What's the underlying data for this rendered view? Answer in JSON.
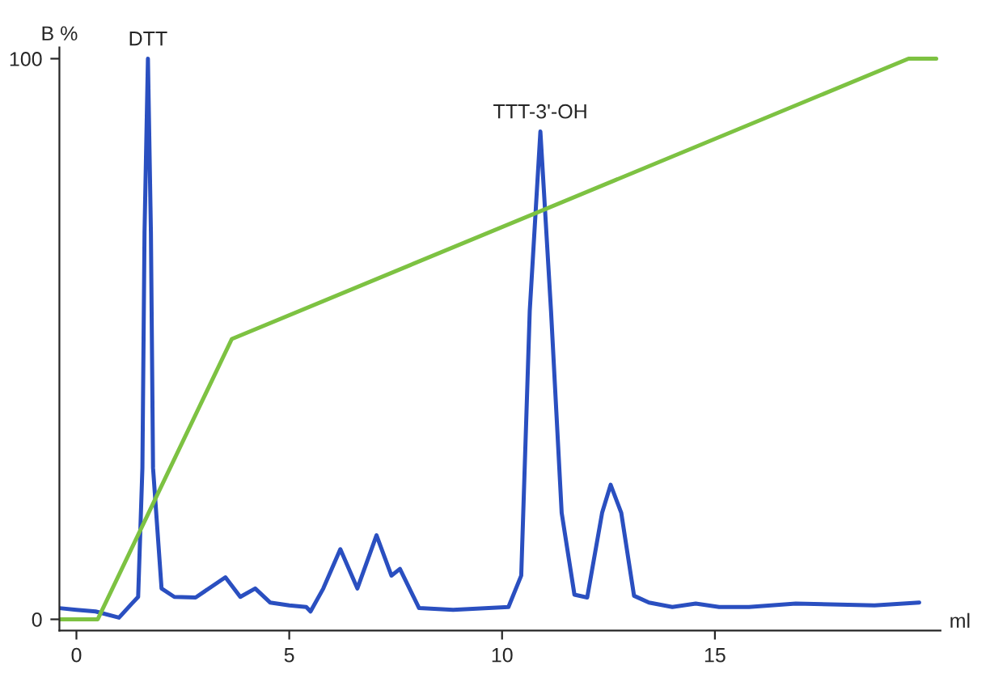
{
  "chart_data": {
    "type": "line",
    "xlabel": "ml",
    "ylabel": "B %",
    "xlim": [
      -0.4,
      20.3
    ],
    "ylim": [
      -2,
      102
    ],
    "xticks": [
      0,
      5,
      10,
      15
    ],
    "yticks": [
      0,
      100
    ],
    "grid": false,
    "legend": false,
    "marker": "none",
    "line_style": "solid",
    "series": [
      {
        "color": "#2a4fc0",
        "x": [
          -0.4,
          0,
          0.45,
          1.0,
          1.3,
          1.45,
          1.55,
          1.6,
          1.68,
          1.75,
          1.8,
          2.0,
          2.3,
          2.8,
          3.5,
          3.85,
          4.2,
          4.55,
          5.0,
          5.4,
          5.5,
          5.8,
          6.2,
          6.6,
          7.05,
          7.4,
          7.6,
          8.05,
          8.85,
          10.15,
          10.45,
          10.65,
          10.9,
          11.15,
          11.4,
          11.7,
          12.0,
          12.35,
          12.55,
          12.8,
          13.1,
          13.45,
          14.0,
          14.55,
          15.1,
          15.8,
          16.9,
          18.75,
          19.8
        ],
        "values": [
          2,
          1.7,
          1.4,
          0.3,
          2.8,
          4,
          27,
          69,
          100,
          69,
          27,
          5.5,
          4,
          3.9,
          7.5,
          4,
          5.5,
          3,
          2.5,
          2.2,
          1.4,
          5.5,
          12.5,
          5.5,
          15,
          7.8,
          9,
          2,
          1.7,
          2.2,
          7.8,
          55,
          87,
          55,
          19,
          4.4,
          3.9,
          19,
          24,
          19,
          4.2,
          3,
          2.2,
          2.8,
          2.2,
          2.2,
          2.8,
          2.5,
          3
        ]
      },
      {
        "color": "#7dc242",
        "x": [
          -0.4,
          0.5,
          3.65,
          19.55,
          20.2
        ],
        "values": [
          0,
          0,
          50,
          100,
          100
        ]
      }
    ],
    "annotations": [
      {
        "text": "DTT",
        "x": 1.68,
        "y": 100
      },
      {
        "text": "TTT-3'-OH",
        "x": 10.9,
        "y": 87
      }
    ]
  }
}
